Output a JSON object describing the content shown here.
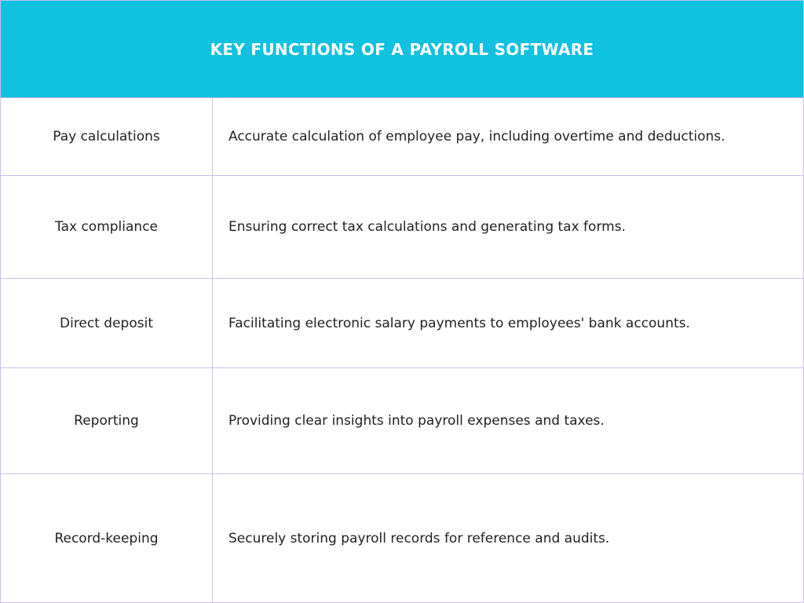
{
  "title": "KEY FUNCTIONS OF A PAYROLL SOFTWARE",
  "colors": {
    "header_bg": "#10c1e0",
    "header_text": "#ffffff",
    "border": "#c9c0ea"
  },
  "rows": [
    {
      "function": "Pay calculations",
      "description": "Accurate calculation of employee pay, including overtime and deductions."
    },
    {
      "function": "Tax compliance",
      "description": "Ensuring correct tax calculations and generating tax forms."
    },
    {
      "function": "Direct deposit",
      "description": "Facilitating electronic salary payments to employees' bank accounts."
    },
    {
      "function": "Reporting",
      "description": "Providing clear insights into payroll expenses and taxes."
    },
    {
      "function": "Record-keeping",
      "description": "Securely storing payroll records for reference and audits."
    }
  ]
}
